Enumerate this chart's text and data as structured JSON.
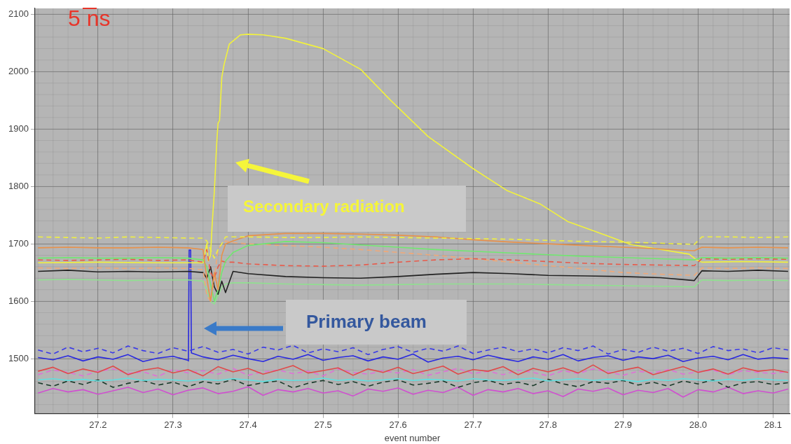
{
  "chart_data": {
    "type": "line",
    "xlabel": "event number",
    "annotations": [
      "5 ns",
      "Secondary radiation",
      "Primary beam"
    ],
    "xlim": [
      27.116,
      28.122
    ],
    "ylim": [
      1404,
      2110
    ],
    "xticks": [
      {
        "value": 27.2,
        "label": "27.2"
      },
      {
        "value": 27.3,
        "label": "27.3"
      },
      {
        "value": 27.4,
        "label": "27.4"
      },
      {
        "value": 27.5,
        "label": "27.5"
      },
      {
        "value": 27.6,
        "label": "27.6"
      },
      {
        "value": 27.7,
        "label": "27.7"
      },
      {
        "value": 27.8,
        "label": "27.8"
      },
      {
        "value": 27.9,
        "label": "27.9"
      },
      {
        "value": 28.0,
        "label": "28.0"
      },
      {
        "value": 28.1,
        "label": "28.1"
      }
    ],
    "yticks": [
      1500,
      1600,
      1700,
      1800,
      1900,
      2000,
      2100
    ],
    "grid": true,
    "marker": "none",
    "line_style": "solid",
    "x": [
      27.12,
      27.14,
      27.16,
      27.18,
      27.2,
      27.22,
      27.24,
      27.26,
      27.28,
      27.3,
      27.32,
      27.34,
      27.36,
      27.38,
      27.4,
      27.42,
      27.44,
      27.46,
      27.48,
      27.5,
      27.52,
      27.54,
      27.56,
      27.58,
      27.6,
      27.62,
      27.64,
      27.66,
      27.68,
      27.7,
      27.72,
      27.74,
      27.76,
      27.78,
      27.8,
      27.82,
      27.84,
      27.86,
      27.88,
      27.9,
      27.92,
      27.94,
      27.96,
      27.98,
      28.0,
      28.02,
      28.04,
      28.06,
      28.08,
      28.1,
      28.12
    ],
    "series": [
      {
        "color": "#f0f040",
        "line_style": "dashed",
        "x": [
          27.12,
          27.16,
          27.2,
          27.24,
          27.28,
          27.32,
          27.34,
          27.345,
          27.35,
          27.355,
          27.36,
          27.365,
          27.37,
          27.38,
          27.4,
          27.45,
          27.5,
          27.55,
          27.6,
          27.65,
          27.7,
          27.75,
          27.8,
          27.85,
          27.9,
          27.95,
          27.995,
          28.005,
          28.04,
          28.08,
          28.12
        ],
        "values": [
          1712,
          1711,
          1710,
          1712,
          1711,
          1710,
          1710,
          1705,
          1690,
          1675,
          1690,
          1700,
          1712,
          1712,
          1712,
          1711,
          1711,
          1712,
          1711,
          1710,
          1709,
          1708,
          1706,
          1704,
          1703,
          1701,
          1699,
          1712,
          1712,
          1711,
          1712
        ]
      },
      {
        "color": "#e8914a",
        "x": [
          27.12,
          27.16,
          27.2,
          27.24,
          27.28,
          27.32,
          27.34,
          27.345,
          27.35,
          27.355,
          27.36,
          27.365,
          27.37,
          27.38,
          27.4,
          27.45,
          27.5,
          27.55,
          27.6,
          27.65,
          27.7,
          27.75,
          27.8,
          27.85,
          27.9,
          27.95,
          27.995,
          28.005,
          28.04,
          28.08,
          28.12
        ],
        "values": [
          1693,
          1694,
          1693,
          1693,
          1694,
          1693,
          1690,
          1640,
          1600,
          1650,
          1620,
          1680,
          1700,
          1705,
          1714,
          1718,
          1718,
          1717,
          1715,
          1712,
          1707,
          1703,
          1700,
          1697,
          1694,
          1691,
          1688,
          1694,
          1693,
          1694,
          1693
        ]
      },
      {
        "color": "#70e870",
        "x": [
          27.12,
          27.16,
          27.2,
          27.24,
          27.28,
          27.32,
          27.34,
          27.345,
          27.35,
          27.355,
          27.36,
          27.365,
          27.37,
          27.38,
          27.4,
          27.45,
          27.5,
          27.55,
          27.6,
          27.65,
          27.7,
          27.75,
          27.8,
          27.85,
          27.9,
          27.95,
          27.995,
          28.005,
          28.04,
          28.08,
          28.12
        ],
        "values": [
          1675,
          1676,
          1675,
          1675,
          1676,
          1675,
          1672,
          1660,
          1630,
          1600,
          1620,
          1650,
          1670,
          1685,
          1697,
          1704,
          1702,
          1698,
          1694,
          1690,
          1687,
          1684,
          1681,
          1678,
          1676,
          1674,
          1672,
          1676,
          1675,
          1676,
          1675
        ]
      },
      {
        "color": "#e85a4a",
        "line_style": "dashed",
        "x": [
          27.12,
          27.16,
          27.2,
          27.24,
          27.28,
          27.32,
          27.34,
          27.345,
          27.35,
          27.355,
          27.36,
          27.365,
          27.37,
          27.38,
          27.4,
          27.45,
          27.5,
          27.55,
          27.6,
          27.65,
          27.7,
          27.75,
          27.8,
          27.85,
          27.9,
          27.95,
          27.995,
          28.005,
          28.04,
          28.08,
          28.12
        ],
        "values": [
          1672,
          1671,
          1672,
          1673,
          1671,
          1672,
          1668,
          1690,
          1650,
          1640,
          1660,
          1670,
          1668,
          1668,
          1665,
          1662,
          1661,
          1663,
          1668,
          1672,
          1674,
          1672,
          1669,
          1666,
          1664,
          1663,
          1662,
          1674,
          1673,
          1674,
          1673
        ]
      },
      {
        "color": "#f0a878",
        "line_style": "dashed",
        "x": [
          27.12,
          27.16,
          27.2,
          27.24,
          27.28,
          27.32,
          27.34,
          27.345,
          27.35,
          27.355,
          27.36,
          27.365,
          27.37,
          27.38,
          27.4,
          27.45,
          27.5,
          27.55,
          27.6,
          27.65,
          27.7,
          27.75,
          27.8,
          27.85,
          27.9,
          27.95,
          27.995,
          28.005,
          28.04,
          28.08,
          28.12
        ],
        "values": [
          1658,
          1657,
          1658,
          1657,
          1658,
          1657,
          1655,
          1610,
          1600,
          1640,
          1690,
          1700,
          1705,
          1702,
          1700,
          1697,
          1694,
          1690,
          1685,
          1680,
          1674,
          1668,
          1662,
          1656,
          1650,
          1647,
          1645,
          1658,
          1657,
          1658,
          1657
        ]
      },
      {
        "color": "#f2f23c",
        "x": [
          27.12,
          27.2,
          27.28,
          27.34,
          27.345,
          27.347,
          27.35,
          27.352,
          27.355,
          27.358,
          27.36,
          27.362,
          27.365,
          27.368,
          27.375,
          27.39,
          27.4,
          27.42,
          27.45,
          27.5,
          27.55,
          27.59,
          27.64,
          27.7,
          27.745,
          27.79,
          27.826,
          27.87,
          27.91,
          27.95,
          27.988,
          27.998,
          28.005,
          28.06,
          28.12
        ],
        "values": [
          1667,
          1668,
          1667,
          1667,
          1700,
          1670,
          1680,
          1730,
          1790,
          1870,
          1910,
          1915,
          1990,
          2012,
          2048,
          2064,
          2065,
          2064,
          2058,
          2040,
          2004,
          1950,
          1887,
          1831,
          1793,
          1769,
          1739,
          1718,
          1699,
          1690,
          1682,
          1672,
          1668,
          1669,
          1668
        ]
      },
      {
        "color": "#222222",
        "x": [
          27.12,
          27.16,
          27.2,
          27.24,
          27.28,
          27.32,
          27.34,
          27.345,
          27.35,
          27.355,
          27.36,
          27.365,
          27.37,
          27.38,
          27.4,
          27.45,
          27.5,
          27.55,
          27.6,
          27.65,
          27.7,
          27.75,
          27.8,
          27.85,
          27.9,
          27.95,
          27.995,
          28.005,
          28.04,
          28.08,
          28.12
        ],
        "values": [
          1652,
          1654,
          1651,
          1652,
          1651,
          1652,
          1650,
          1640,
          1660,
          1625,
          1612,
          1635,
          1615,
          1652,
          1648,
          1643,
          1641,
          1640,
          1643,
          1647,
          1650,
          1648,
          1645,
          1644,
          1643,
          1641,
          1636,
          1653,
          1652,
          1654,
          1652
        ]
      },
      {
        "color": "#90e090",
        "x": [
          27.12,
          27.16,
          27.2,
          27.24,
          27.28,
          27.32,
          27.34,
          27.345,
          27.35,
          27.355,
          27.36,
          27.365,
          27.37,
          27.38,
          27.4,
          27.45,
          27.5,
          27.55,
          27.6,
          27.65,
          27.7,
          27.75,
          27.8,
          27.85,
          27.9,
          27.95,
          27.995,
          28.005,
          28.04,
          28.08,
          28.12
        ],
        "values": [
          1637,
          1638,
          1637,
          1636,
          1637,
          1637,
          1635,
          1620,
          1600,
          1595,
          1610,
          1625,
          1630,
          1632,
          1632,
          1630,
          1629,
          1628,
          1629,
          1630,
          1630,
          1630,
          1629,
          1628,
          1627,
          1626,
          1625,
          1637,
          1636,
          1637,
          1636
        ]
      },
      {
        "color": "#3a3ae8",
        "line_style": "dashed",
        "values": [
          1515,
          1508,
          1520,
          1512,
          1518,
          1510,
          1522,
          1514,
          1509,
          1519,
          1513,
          1521,
          1511,
          1516,
          1508,
          1520,
          1515,
          1523,
          1510,
          1517,
          1512,
          1519,
          1507,
          1516,
          1521,
          1511,
          1518,
          1513,
          1522,
          1509,
          1515,
          1520,
          1512,
          1517,
          1510,
          1519,
          1514,
          1522,
          1508,
          1516,
          1511,
          1520,
          1513,
          1518,
          1509,
          1521,
          1514,
          1517,
          1510,
          1519,
          1515
        ]
      },
      {
        "color": "#2a2ae0",
        "x": [
          27.12,
          27.14,
          27.16,
          27.18,
          27.2,
          27.22,
          27.24,
          27.26,
          27.28,
          27.3,
          27.32,
          27.3205,
          27.3215,
          27.3235,
          27.3245,
          27.34,
          27.36,
          27.38,
          27.4,
          27.42,
          27.44,
          27.46,
          27.48,
          27.5,
          27.52,
          27.54,
          27.56,
          27.58,
          27.6,
          27.62,
          27.64,
          27.66,
          27.68,
          27.7,
          27.72,
          27.74,
          27.76,
          27.78,
          27.8,
          27.82,
          27.84,
          27.86,
          27.88,
          27.9,
          27.92,
          27.94,
          27.96,
          27.98,
          28.0,
          28.02,
          28.04,
          28.06,
          28.08,
          28.1,
          28.12
        ],
        "values": [
          1502,
          1498,
          1505,
          1496,
          1503,
          1499,
          1507,
          1495,
          1501,
          1504,
          1497,
          1496,
          1689,
          1689,
          1510,
          1503,
          1498,
          1506,
          1500,
          1495,
          1504,
          1499,
          1507,
          1497,
          1502,
          1505,
          1496,
          1503,
          1499,
          1508,
          1494,
          1501,
          1504,
          1498,
          1506,
          1500,
          1495,
          1503,
          1499,
          1507,
          1496,
          1502,
          1505,
          1497,
          1503,
          1500,
          1506,
          1495,
          1501,
          1504,
          1498,
          1507,
          1499,
          1502,
          1500
        ]
      },
      {
        "color": "#e04a4a",
        "values": [
          1478,
          1485,
          1474,
          1482,
          1476,
          1487,
          1472,
          1480,
          1484,
          1475,
          1481,
          1470,
          1486,
          1477,
          1483,
          1473,
          1480,
          1488,
          1475,
          1479,
          1484,
          1471,
          1482,
          1476,
          1485,
          1474,
          1480,
          1487,
          1473,
          1481,
          1478,
          1486,
          1472,
          1483,
          1477,
          1484,
          1475,
          1489,
          1474,
          1480,
          1485,
          1472,
          1479,
          1486,
          1476,
          1482,
          1473,
          1484,
          1478,
          1481,
          1476
        ]
      },
      {
        "color": "#e070d8",
        "line_style": "dashed",
        "values": [
          1472,
          1480,
          1476,
          1470,
          1478,
          1482,
          1474,
          1477,
          1469,
          1481,
          1475,
          1479,
          1473,
          1483,
          1471,
          1477,
          1480,
          1474,
          1478,
          1470,
          1482,
          1476,
          1473,
          1479,
          1475,
          1481,
          1471,
          1477,
          1483,
          1474,
          1478,
          1472,
          1480,
          1476,
          1470,
          1479,
          1474,
          1482,
          1477,
          1471,
          1478,
          1475,
          1481,
          1473,
          1477,
          1480,
          1472,
          1479,
          1476,
          1474,
          1478
        ]
      },
      {
        "color": "#60e0e0",
        "values": [
          1463,
          1465,
          1462,
          1464,
          1461,
          1463,
          1466,
          1462,
          1464,
          1463,
          1461,
          1464,
          1462,
          1465,
          1463,
          1460,
          1464,
          1462,
          1463,
          1466,
          1462,
          1464,
          1461,
          1463,
          1465,
          1462,
          1464,
          1463,
          1461,
          1465,
          1463,
          1462,
          1464,
          1466,
          1461,
          1463,
          1465,
          1462,
          1464,
          1463,
          1460,
          1464,
          1462,
          1465,
          1463,
          1461,
          1464,
          1462,
          1465,
          1463,
          1462
        ]
      },
      {
        "color": "#1a3a2a",
        "line_style": "dashed",
        "values": [
          1458,
          1452,
          1461,
          1455,
          1463,
          1450,
          1457,
          1462,
          1454,
          1459,
          1451,
          1460,
          1456,
          1464,
          1453,
          1458,
          1461,
          1449,
          1457,
          1462,
          1455,
          1460,
          1452,
          1459,
          1463,
          1454,
          1457,
          1461,
          1450,
          1458,
          1462,
          1455,
          1459,
          1453,
          1464,
          1456,
          1451,
          1460,
          1457,
          1462,
          1454,
          1459,
          1452,
          1461,
          1456,
          1463,
          1450,
          1458,
          1460,
          1455,
          1458
        ]
      },
      {
        "color": "#d050d0",
        "values": [
          1440,
          1448,
          1442,
          1446,
          1438,
          1444,
          1450,
          1441,
          1447,
          1437,
          1445,
          1449,
          1439,
          1443,
          1451,
          1436,
          1446,
          1442,
          1448,
          1440,
          1444,
          1435,
          1447,
          1443,
          1449,
          1438,
          1445,
          1441,
          1450,
          1436,
          1446,
          1442,
          1448,
          1439,
          1444,
          1434,
          1447,
          1443,
          1449,
          1437,
          1445,
          1441,
          1448,
          1433,
          1446,
          1442,
          1450,
          1439,
          1444,
          1440,
          1447
        ]
      }
    ]
  }
}
